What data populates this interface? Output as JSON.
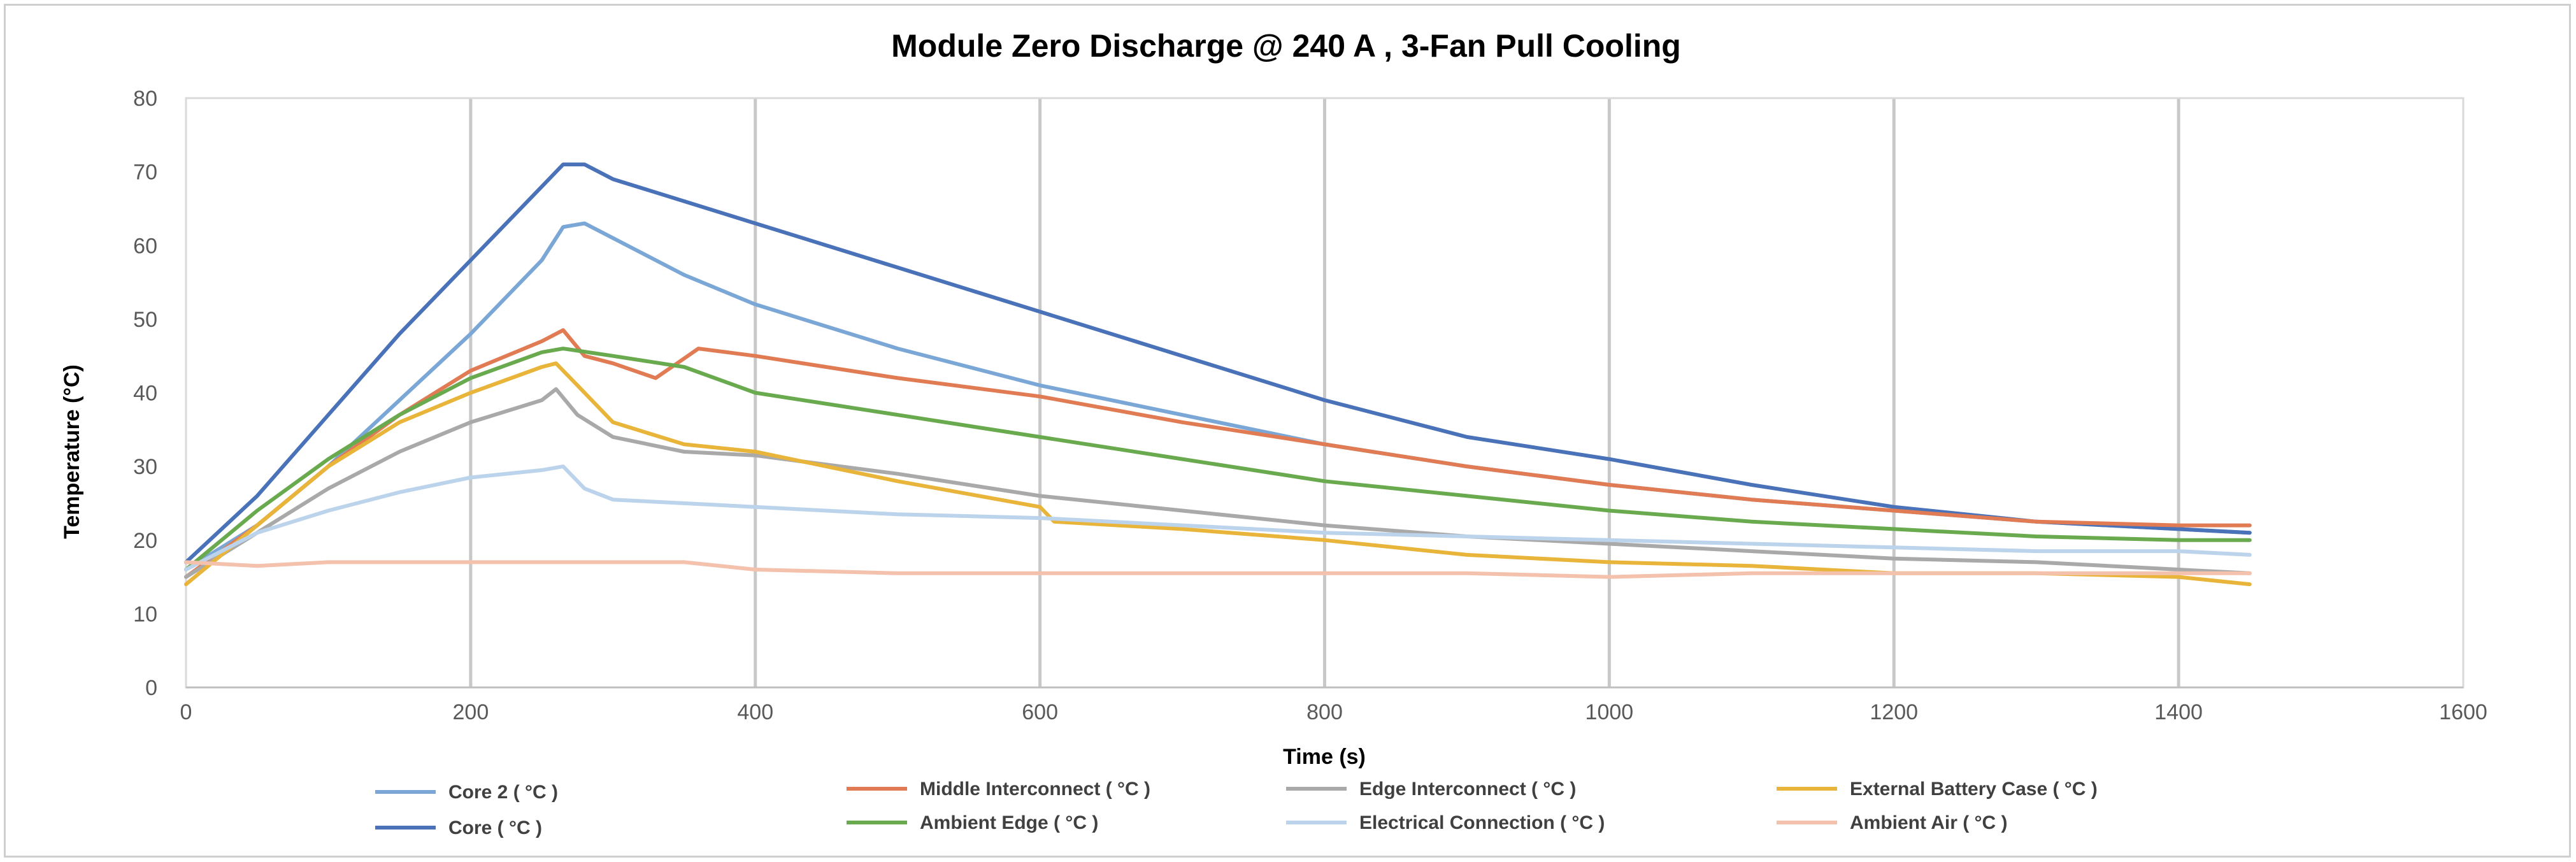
{
  "chart_data": {
    "type": "line",
    "title": "Module Zero Discharge @ 240 A , 3-Fan Pull Cooling",
    "xlabel": "Time (s)",
    "ylabel": "Temperature (°C)",
    "xlim": [
      0,
      1600
    ],
    "ylim": [
      0,
      80
    ],
    "xticks": [
      "0",
      "200",
      "400",
      "600",
      "800",
      "1000",
      "1200",
      "1400",
      "1600"
    ],
    "yticks": [
      "0",
      "10",
      "20",
      "30",
      "40",
      "50",
      "60",
      "70",
      "80"
    ],
    "grid": "vertical",
    "legend_position": "bottom",
    "series": [
      {
        "name": "Core 2 ( °C )",
        "color": "#7aa7d6",
        "x": [
          0,
          50,
          100,
          150,
          200,
          250,
          265,
          280,
          300,
          350,
          400,
          500,
          600,
          700,
          800,
          900,
          1000,
          1100,
          1200,
          1300,
          1400,
          1450
        ],
        "y": [
          16,
          22,
          30,
          39,
          48,
          58,
          62.5,
          63,
          61,
          56,
          52,
          46,
          41,
          37,
          33,
          30,
          27.5,
          25.5,
          24,
          22.5,
          21.5,
          21
        ]
      },
      {
        "name": "Core ( °C )",
        "color": "#4a72b8",
        "x": [
          0,
          50,
          100,
          150,
          200,
          250,
          265,
          280,
          300,
          350,
          400,
          500,
          600,
          700,
          800,
          900,
          1000,
          1100,
          1200,
          1300,
          1400,
          1450
        ],
        "y": [
          17,
          26,
          37,
          48,
          58,
          68,
          71,
          71,
          69,
          66,
          63,
          57,
          51,
          45,
          39,
          34,
          31,
          27.5,
          24.5,
          22.5,
          21.5,
          21
        ]
      },
      {
        "name": "Middle Interconnect ( °C )",
        "color": "#e07b54",
        "x": [
          0,
          50,
          100,
          150,
          200,
          250,
          265,
          280,
          300,
          330,
          345,
          360,
          400,
          500,
          600,
          700,
          800,
          900,
          1000,
          1100,
          1200,
          1300,
          1400,
          1450
        ],
        "y": [
          15,
          22,
          30,
          37,
          43,
          47,
          48.5,
          45,
          44,
          42,
          44,
          46,
          45,
          42,
          39.5,
          36,
          33,
          30,
          27.5,
          25.5,
          24,
          22.5,
          22,
          22
        ]
      },
      {
        "name": "Edge Interconnect ( °C )",
        "color": "#a9a9a9",
        "x": [
          0,
          50,
          100,
          150,
          200,
          250,
          260,
          275,
          300,
          350,
          400,
          500,
          600,
          700,
          800,
          900,
          1000,
          1100,
          1200,
          1300,
          1400,
          1450
        ],
        "y": [
          15,
          21,
          27,
          32,
          36,
          39,
          40.5,
          37,
          34,
          32,
          31.5,
          29,
          26,
          24,
          22,
          20.5,
          19.5,
          18.5,
          17.5,
          17,
          16,
          15.5
        ]
      },
      {
        "name": "External Battery Case ( °C )",
        "color": "#e8b43a",
        "x": [
          0,
          50,
          100,
          150,
          200,
          250,
          260,
          275,
          300,
          350,
          400,
          500,
          600,
          610,
          700,
          800,
          900,
          1000,
          1100,
          1200,
          1300,
          1400,
          1450
        ],
        "y": [
          14,
          22,
          30,
          36,
          40,
          43.5,
          44,
          41,
          36,
          33,
          32,
          28,
          24.5,
          22.5,
          21.5,
          20,
          18,
          17,
          16.5,
          15.5,
          15.5,
          15,
          14
        ]
      },
      {
        "name": "Ambient Edge ( °C )",
        "color": "#6aaa4f",
        "x": [
          0,
          50,
          100,
          150,
          200,
          250,
          265,
          300,
          350,
          400,
          500,
          600,
          700,
          800,
          900,
          1000,
          1100,
          1200,
          1300,
          1400,
          1450
        ],
        "y": [
          16,
          24,
          31,
          37,
          42,
          45.5,
          46,
          45,
          43.5,
          40,
          37,
          34,
          31,
          28,
          26,
          24,
          22.5,
          21.5,
          20.5,
          20,
          20
        ]
      },
      {
        "name": "Electrical Connection ( °C )",
        "color": "#bcd3ec",
        "x": [
          0,
          50,
          100,
          150,
          200,
          250,
          265,
          280,
          300,
          400,
          500,
          600,
          700,
          800,
          900,
          1000,
          1100,
          1200,
          1300,
          1400,
          1450
        ],
        "y": [
          16,
          21,
          24,
          26.5,
          28.5,
          29.5,
          30,
          27,
          25.5,
          24.5,
          23.5,
          23,
          22,
          21,
          20.5,
          20,
          19.5,
          19,
          18.5,
          18.5,
          18
        ]
      },
      {
        "name": "Ambient Air ( °C )",
        "color": "#f4c1ad",
        "x": [
          0,
          50,
          100,
          150,
          200,
          250,
          300,
          350,
          400,
          500,
          600,
          700,
          800,
          900,
          1000,
          1100,
          1200,
          1300,
          1400,
          1450
        ],
        "y": [
          17,
          16.5,
          17,
          17,
          17,
          17,
          17,
          17,
          16,
          15.5,
          15.5,
          15.5,
          15.5,
          15.5,
          15,
          15.5,
          15.5,
          15.5,
          15.5,
          15.5
        ]
      }
    ]
  }
}
